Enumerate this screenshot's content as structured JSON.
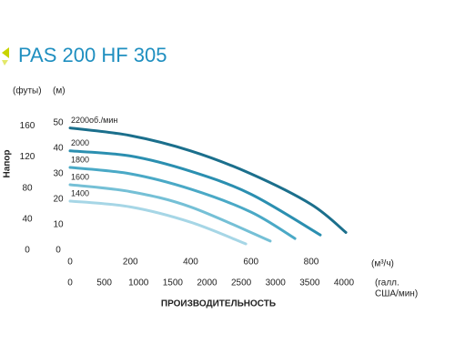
{
  "chart_data": {
    "type": "line",
    "title": "PAS 200 HF 305",
    "y_label": "Напор",
    "y_unit": "(м)",
    "y2_unit": "(футы)",
    "x_unit": "(м³/ч)",
    "x2_label": [
      "(галл.",
      "США/мин)"
    ],
    "x_label": "ПРОИЗВОДИТЕЛЬНОСТЬ",
    "xlim": [
      0,
      800
    ],
    "xticks": [
      0,
      200,
      400,
      600,
      800
    ],
    "x2lim": [
      0,
      3522
    ],
    "x2ticks": [
      0,
      500,
      1000,
      1500,
      2000,
      2500,
      3000,
      3500,
      4000
    ],
    "ylim": [
      0,
      50
    ],
    "yticks": [
      0,
      10,
      20,
      30,
      40,
      50
    ],
    "y2lim": [
      0,
      164
    ],
    "y2ticks": [
      0,
      40,
      80,
      120,
      160
    ],
    "series": [
      {
        "name": "2200об./мин",
        "color": "#1b6f8c",
        "x": [
          0,
          200,
          400,
          600,
          800,
          915
        ],
        "values": [
          48,
          45,
          39,
          30,
          18,
          7
        ]
      },
      {
        "name": "2000",
        "color": "#2b8fb0",
        "x": [
          0,
          200,
          400,
          600,
          830
        ],
        "values": [
          39,
          37,
          31,
          22,
          6
        ]
      },
      {
        "name": "1800",
        "color": "#4aa9c6",
        "x": [
          0,
          200,
          400,
          600,
          746
        ],
        "values": [
          32.5,
          30,
          24,
          15,
          4.6
        ]
      },
      {
        "name": "1600",
        "color": "#75c0d6",
        "x": [
          0,
          200,
          400,
          664
        ],
        "values": [
          25.7,
          23,
          17,
          3.6
        ]
      },
      {
        "name": "1400",
        "color": "#a6d6e6",
        "x": [
          0,
          200,
          400,
          583
        ],
        "values": [
          19.3,
          17,
          11,
          2.5
        ]
      }
    ]
  }
}
